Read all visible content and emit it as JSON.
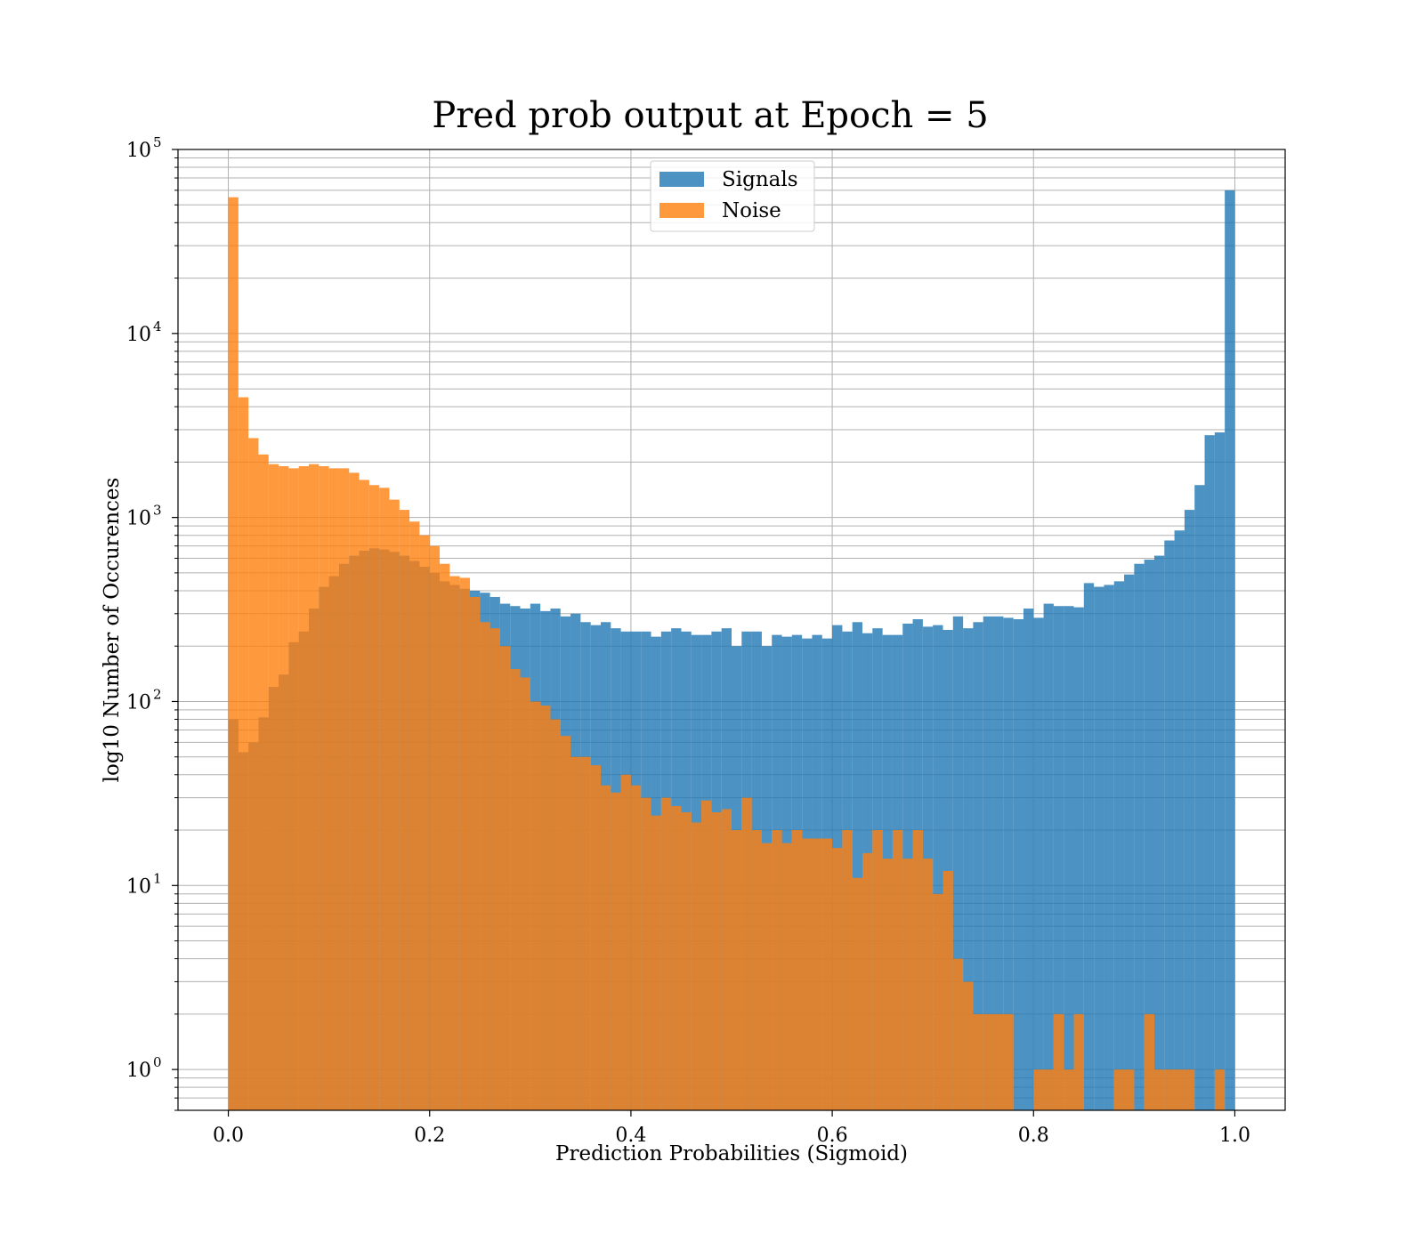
{
  "chart_data": {
    "type": "bar",
    "subtype": "overlaid-histogram",
    "title": "Pred prob output at Epoch = 5",
    "xlabel": "Prediction Probabilities (Sigmoid)",
    "ylabel": "log10 Number of Occurences",
    "xscale": "linear",
    "yscale": "log",
    "xlim": [
      -0.05,
      1.05
    ],
    "ylim": [
      0.6,
      100000
    ],
    "xticks": [
      "0.0",
      "0.2",
      "0.4",
      "0.6",
      "0.8",
      "1.0"
    ],
    "yticks": [
      {
        "value": 1,
        "base": "10",
        "exp": "0"
      },
      {
        "value": 10,
        "base": "10",
        "exp": "1"
      },
      {
        "value": 100,
        "base": "10",
        "exp": "2"
      },
      {
        "value": 1000,
        "base": "10",
        "exp": "3"
      },
      {
        "value": 10000,
        "base": "10",
        "exp": "4"
      },
      {
        "value": 100000,
        "base": "10",
        "exp": "5"
      }
    ],
    "grid": true,
    "legend_position": "upper-center",
    "bin_range": [
      0,
      1
    ],
    "bin_count": 100,
    "series": [
      {
        "name": "Signals",
        "color": "#1f77b4",
        "values": [
          80,
          53,
          60,
          82,
          120,
          140,
          210,
          240,
          320,
          420,
          480,
          560,
          620,
          660,
          680,
          670,
          650,
          620,
          580,
          540,
          500,
          450,
          430,
          410,
          400,
          390,
          370,
          340,
          330,
          320,
          340,
          310,
          320,
          290,
          300,
          270,
          260,
          270,
          250,
          240,
          240,
          240,
          225,
          240,
          250,
          240,
          230,
          230,
          240,
          250,
          200,
          240,
          240,
          200,
          230,
          225,
          230,
          220,
          230,
          220,
          260,
          240,
          270,
          235,
          250,
          230,
          230,
          265,
          280,
          255,
          260,
          245,
          290,
          250,
          270,
          290,
          290,
          285,
          280,
          320,
          285,
          340,
          330,
          330,
          325,
          440,
          420,
          430,
          450,
          490,
          560,
          590,
          620,
          750,
          850,
          1100,
          1500,
          2800,
          2900,
          60000
        ]
      },
      {
        "name": "Noise",
        "color": "#ff7f0e",
        "values": [
          55000,
          4500,
          2700,
          2200,
          1950,
          1900,
          1850,
          1900,
          1950,
          1900,
          1850,
          1850,
          1750,
          1600,
          1500,
          1450,
          1250,
          1100,
          950,
          800,
          700,
          560,
          480,
          470,
          370,
          270,
          250,
          200,
          150,
          135,
          100,
          95,
          80,
          65,
          50,
          50,
          45,
          35,
          32,
          40,
          35,
          30,
          24,
          30,
          27,
          25,
          22,
          29,
          25,
          26,
          20,
          30,
          20,
          17,
          20,
          17,
          20,
          18,
          18,
          18,
          16,
          20,
          11,
          15,
          20,
          14,
          20,
          14,
          20,
          14,
          9,
          12,
          4,
          3,
          2,
          2,
          2,
          2,
          0,
          0,
          1,
          1,
          2,
          1,
          2,
          0,
          0,
          0,
          1,
          1,
          0,
          2,
          1,
          1,
          1,
          1,
          0,
          0,
          1,
          0
        ]
      }
    ]
  }
}
